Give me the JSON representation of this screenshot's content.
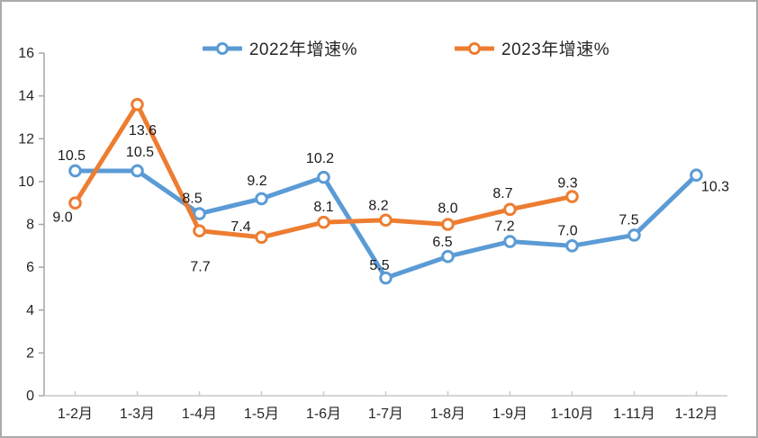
{
  "chart_data": {
    "type": "line",
    "title": "",
    "xlabel": "",
    "ylabel": "",
    "categories": [
      "1-2月",
      "1-3月",
      "1-4月",
      "1-5月",
      "1-6月",
      "1-7月",
      "1-8月",
      "1-9月",
      "1-10月",
      "1-11月",
      "1-12月"
    ],
    "series": [
      {
        "name": "2022年增速%",
        "color": "#5B9BD5",
        "values": [
          10.5,
          10.5,
          8.5,
          9.2,
          10.2,
          5.5,
          6.5,
          7.2,
          7.0,
          7.5,
          10.3
        ],
        "label_offsets": [
          [
            -4,
            -12
          ],
          [
            3,
            -16
          ],
          [
            -8,
            -12
          ],
          [
            -5,
            -15
          ],
          [
            -4,
            -16
          ],
          [
            -7,
            -9
          ],
          [
            -6,
            -11
          ],
          [
            -6,
            -12
          ],
          [
            -5,
            -12
          ],
          [
            -6,
            -12
          ],
          [
            21,
            18
          ]
        ]
      },
      {
        "name": "2023年增速%",
        "color": "#ED7D31",
        "values": [
          9.0,
          13.6,
          7.7,
          7.4,
          8.1,
          8.2,
          8.0,
          8.7,
          9.3
        ],
        "label_offsets": [
          [
            -14,
            21
          ],
          [
            6,
            34
          ],
          [
            1,
            45
          ],
          [
            -23,
            -7
          ],
          [
            0,
            -12
          ],
          [
            -8,
            -11
          ],
          [
            0,
            -13
          ],
          [
            -8,
            -13
          ],
          [
            -5,
            -10
          ]
        ]
      }
    ],
    "ylim": [
      0,
      16
    ],
    "yticks": [
      0,
      2,
      4,
      6,
      8,
      10,
      12,
      14,
      16
    ],
    "grid": false,
    "legend_position": "top-center",
    "value_format": "one-decimal",
    "colors": {
      "y_axis": "#A6A6A6",
      "x_axis": "#C9C9C9",
      "tick_text": "#262626",
      "data_label_text": "#1a1a1a",
      "background": "#FFFFFF",
      "border": "#ABABAB"
    }
  }
}
